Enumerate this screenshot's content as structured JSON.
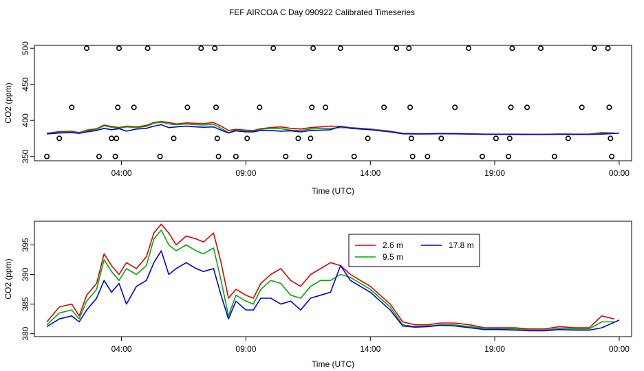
{
  "title": "FEF AIRCOA C  Day 090922  Calibrated Timeseries",
  "chart_data": [
    {
      "type": "line",
      "panel": "top",
      "xlabel": "Time (UTC)",
      "ylabel": "CO2 (ppm)",
      "xlim": [
        0.5,
        24.5
      ],
      "ylim": [
        344,
        504
      ],
      "x_ticks": [
        4,
        9,
        14,
        19,
        24
      ],
      "x_tick_labels": [
        "04:00",
        "09:00",
        "14:00",
        "19:00",
        "00:00"
      ],
      "y_ticks": [
        350,
        400,
        450,
        500
      ],
      "y_tick_labels": [
        "350",
        "400",
        "450",
        "500"
      ],
      "grid": false,
      "calibration_points": {
        "style": "open-circle",
        "points": [
          [
            1.0,
            350
          ],
          [
            1.5,
            375
          ],
          [
            2.0,
            418
          ],
          [
            2.6,
            500
          ],
          [
            3.1,
            350
          ],
          [
            3.6,
            375
          ],
          [
            3.75,
            350
          ],
          [
            3.8,
            375
          ],
          [
            3.85,
            418
          ],
          [
            3.9,
            500
          ],
          [
            4.5,
            418
          ],
          [
            5.05,
            500
          ],
          [
            5.55,
            350
          ],
          [
            6.1,
            375
          ],
          [
            6.65,
            418
          ],
          [
            7.2,
            500
          ],
          [
            7.75,
            500
          ],
          [
            7.8,
            418
          ],
          [
            7.85,
            375
          ],
          [
            7.9,
            350
          ],
          [
            8.6,
            350
          ],
          [
            9.05,
            375
          ],
          [
            9.55,
            418
          ],
          [
            10.1,
            500
          ],
          [
            10.6,
            350
          ],
          [
            11.1,
            375
          ],
          [
            11.55,
            350
          ],
          [
            11.6,
            375
          ],
          [
            11.65,
            418
          ],
          [
            11.7,
            500
          ],
          [
            12.2,
            418
          ],
          [
            12.8,
            500
          ],
          [
            13.35,
            350
          ],
          [
            13.9,
            375
          ],
          [
            14.55,
            418
          ],
          [
            15.05,
            500
          ],
          [
            15.55,
            500
          ],
          [
            15.6,
            418
          ],
          [
            15.65,
            375
          ],
          [
            15.7,
            350
          ],
          [
            16.3,
            350
          ],
          [
            16.85,
            375
          ],
          [
            17.4,
            418
          ],
          [
            17.95,
            500
          ],
          [
            18.5,
            350
          ],
          [
            19.05,
            375
          ],
          [
            19.55,
            350
          ],
          [
            19.6,
            375
          ],
          [
            19.65,
            418
          ],
          [
            19.7,
            500
          ],
          [
            20.3,
            418
          ],
          [
            20.85,
            500
          ],
          [
            21.4,
            350
          ],
          [
            21.95,
            375
          ],
          [
            22.5,
            418
          ],
          [
            23.0,
            500
          ],
          [
            23.55,
            500
          ],
          [
            23.6,
            418
          ],
          [
            23.65,
            375
          ],
          [
            23.7,
            350
          ]
        ]
      },
      "series": [
        {
          "name": "2.6 m",
          "color": "#dd0000",
          "id": "s26"
        },
        {
          "name": "9.5 m",
          "color": "#00aa00",
          "id": "s95"
        },
        {
          "name": "17.8 m",
          "color": "#0000dd",
          "id": "s178"
        }
      ]
    },
    {
      "type": "line",
      "panel": "bottom",
      "xlabel": "Time (UTC)",
      "ylabel": "CO2 (ppm)",
      "xlim": [
        0.5,
        24.5
      ],
      "ylim": [
        379.5,
        399
      ],
      "x_ticks": [
        4,
        9,
        14,
        19,
        24
      ],
      "x_tick_labels": [
        "04:00",
        "09:00",
        "14:00",
        "19:00",
        "00:00"
      ],
      "y_ticks": [
        380,
        385,
        390,
        395
      ],
      "y_tick_labels": [
        "380",
        "385",
        "390",
        "395"
      ],
      "grid": false,
      "legend": {
        "position": "top-center",
        "columns": 2
      },
      "series": [
        {
          "name": "2.6 m",
          "color": "#dd0000",
          "x": [
            1.0,
            1.5,
            2.0,
            2.3,
            2.6,
            3.0,
            3.3,
            3.6,
            3.9,
            4.2,
            4.6,
            5.0,
            5.3,
            5.6,
            5.9,
            6.2,
            6.6,
            7.0,
            7.3,
            7.7,
            8.0,
            8.3,
            8.6,
            9.0,
            9.3,
            9.6,
            10.0,
            10.4,
            10.8,
            11.2,
            11.6,
            12.0,
            12.4,
            12.8,
            13.2,
            13.6,
            14.0,
            14.4,
            14.8,
            15.3,
            15.8,
            16.3,
            16.8,
            17.4,
            18.0,
            18.6,
            19.2,
            19.8,
            20.4,
            21.0,
            21.6,
            22.2,
            22.8,
            23.3,
            23.8
          ],
          "y": [
            382.0,
            384.5,
            385.0,
            383.0,
            386.5,
            388.5,
            393.5,
            391.5,
            390.0,
            392.0,
            391.0,
            393.0,
            397.0,
            398.5,
            397.0,
            395.0,
            396.5,
            396.0,
            395.5,
            397.0,
            392.0,
            386.0,
            387.5,
            386.5,
            386.0,
            388.5,
            390.0,
            391.0,
            389.0,
            388.0,
            390.0,
            391.0,
            392.0,
            391.5,
            390.0,
            389.0,
            388.0,
            386.5,
            385.0,
            382.0,
            381.5,
            381.5,
            381.8,
            381.8,
            381.5,
            381.0,
            381.0,
            381.0,
            380.8,
            380.8,
            381.2,
            381.0,
            381.0,
            383.0,
            382.5
          ]
        },
        {
          "name": "9.5 m",
          "color": "#00aa00",
          "x": [
            1.0,
            1.5,
            2.0,
            2.3,
            2.6,
            3.0,
            3.3,
            3.6,
            3.9,
            4.2,
            4.6,
            5.0,
            5.3,
            5.6,
            5.9,
            6.2,
            6.6,
            7.0,
            7.3,
            7.7,
            8.0,
            8.3,
            8.6,
            9.0,
            9.3,
            9.6,
            10.0,
            10.4,
            10.8,
            11.2,
            11.6,
            12.0,
            12.4,
            12.8,
            13.2,
            13.6,
            14.0,
            14.4,
            14.8,
            15.3,
            15.8,
            16.3,
            16.8,
            17.4,
            18.0,
            18.6,
            19.2,
            19.8,
            20.4,
            21.0,
            21.6,
            22.2,
            22.8,
            23.3,
            23.8
          ],
          "y": [
            381.5,
            383.5,
            384.0,
            382.5,
            385.5,
            387.5,
            392.5,
            390.5,
            389.0,
            391.0,
            390.0,
            391.5,
            396.0,
            397.5,
            395.0,
            394.0,
            395.0,
            394.0,
            393.5,
            394.5,
            389.0,
            383.0,
            386.5,
            385.5,
            385.0,
            387.5,
            389.0,
            388.5,
            386.5,
            386.0,
            388.0,
            389.0,
            389.0,
            390.0,
            389.5,
            388.5,
            387.5,
            386.0,
            384.5,
            381.5,
            381.2,
            381.3,
            381.5,
            381.5,
            381.2,
            380.9,
            380.8,
            380.8,
            380.6,
            380.6,
            380.9,
            380.8,
            380.8,
            382.0,
            382.0
          ]
        },
        {
          "name": "17.8 m",
          "color": "#0000dd",
          "x": [
            1.0,
            1.5,
            2.0,
            2.3,
            2.6,
            3.0,
            3.3,
            3.6,
            3.9,
            4.2,
            4.6,
            5.0,
            5.3,
            5.6,
            5.9,
            6.2,
            6.6,
            7.0,
            7.3,
            7.7,
            8.0,
            8.3,
            8.6,
            9.0,
            9.3,
            9.6,
            10.0,
            10.4,
            10.8,
            11.2,
            11.6,
            12.0,
            12.4,
            12.8,
            13.2,
            13.6,
            14.0,
            14.4,
            14.8,
            15.3,
            15.8,
            16.3,
            16.8,
            17.4,
            18.0,
            18.6,
            19.2,
            19.8,
            20.4,
            21.0,
            21.6,
            22.2,
            22.8,
            23.3,
            24.0
          ],
          "y": [
            381.2,
            382.5,
            383.0,
            382.0,
            384.0,
            386.0,
            389.0,
            387.0,
            388.5,
            385.0,
            388.0,
            389.0,
            392.0,
            394.0,
            390.0,
            391.0,
            392.0,
            391.0,
            390.5,
            391.0,
            386.5,
            382.5,
            385.5,
            384.0,
            384.0,
            386.0,
            386.0,
            385.0,
            385.5,
            384.0,
            386.0,
            386.5,
            387.0,
            391.5,
            389.0,
            388.0,
            387.0,
            385.5,
            384.0,
            381.3,
            381.1,
            381.2,
            381.4,
            381.3,
            381.0,
            380.7,
            380.7,
            380.6,
            380.5,
            380.5,
            380.7,
            380.6,
            380.6,
            381.0,
            382.3
          ]
        }
      ]
    }
  ]
}
